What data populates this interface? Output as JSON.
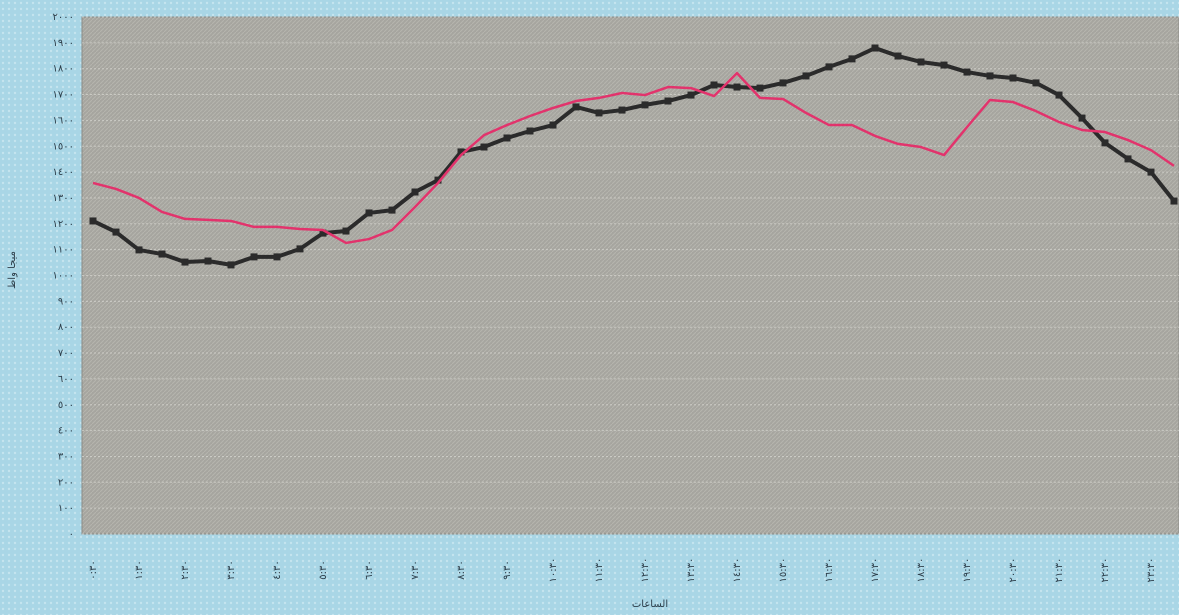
{
  "chart_data": {
    "type": "line",
    "y_label": "ميجا واط",
    "x_label": "الساعات",
    "categories": [
      "٠:٣٠",
      null,
      "١:٣٠",
      null,
      "٢:٣٠",
      null,
      "٣:٣٠",
      null,
      "٤:٣٠",
      null,
      "٥:٣٠",
      null,
      "٦:٣٠",
      null,
      "٧:٣٠",
      null,
      "٨:٣٠",
      null,
      "٩:٣٠",
      null,
      "١٠:٣٠",
      null,
      "١١:٣٠",
      null,
      "١٢:٣٠",
      null,
      "١٣:٣٠",
      null,
      "١٤:٣٠",
      null,
      "١٥:٣٠",
      null,
      "١٦:٣٠",
      null,
      "١٧:٣٠",
      null,
      "١٨:٣٠",
      null,
      "١٩:٣٠",
      null,
      "٢٠:٣٠",
      null,
      "٢١:٣٠",
      null,
      "٢٢:٣٠",
      null,
      "٢٣:٣٠",
      null
    ],
    "series": [
      {
        "color": "#2b2b2b",
        "markers": true,
        "values": [
          1211,
          1168,
          1099,
          1083,
          1052,
          1056,
          1041,
          1072,
          1072,
          1103,
          1164,
          1172,
          1242,
          1253,
          1323,
          1369,
          1478,
          1497,
          1532,
          1559,
          1582,
          1652,
          1629,
          1640,
          1660,
          1675,
          1698,
          1737,
          1729,
          1725,
          1745,
          1772,
          1807,
          1838,
          1880,
          1849,
          1826,
          1814,
          1787,
          1772,
          1764,
          1745,
          1698,
          1609,
          1513,
          1451,
          1400,
          1288
        ]
      },
      {
        "color": "#e2336c",
        "markers": false,
        "values": [
          1358,
          1335,
          1300,
          1246,
          1219,
          1215,
          1211,
          1188,
          1188,
          1180,
          1176,
          1126,
          1141,
          1176,
          1265,
          1358,
          1466,
          1543,
          1582,
          1617,
          1648,
          1675,
          1687,
          1706,
          1698,
          1729,
          1725,
          1694,
          1783,
          1687,
          1683,
          1629,
          1582,
          1582,
          1540,
          1509,
          1497,
          1466,
          1574,
          1679,
          1671,
          1636,
          1594,
          1563,
          1555,
          1524,
          1485,
          1424
        ]
      }
    ],
    "ylim": [
      0,
      2000
    ],
    "yticks": [
      {
        "value": 0,
        "label": "٠"
      },
      {
        "value": 100,
        "label": "١٠٠"
      },
      {
        "value": 200,
        "label": "٢٠٠"
      },
      {
        "value": 300,
        "label": "٣٠٠"
      },
      {
        "value": 400,
        "label": "٤٠٠"
      },
      {
        "value": 500,
        "label": "٥٠٠"
      },
      {
        "value": 600,
        "label": "٦٠٠"
      },
      {
        "value": 700,
        "label": "٧٠٠"
      },
      {
        "value": 800,
        "label": "٨٠٠"
      },
      {
        "value": 900,
        "label": "٩٠٠"
      },
      {
        "value": 1000,
        "label": "١٠٠٠"
      },
      {
        "value": 1100,
        "label": "١١٠٠"
      },
      {
        "value": 1200,
        "label": "١٢٠٠"
      },
      {
        "value": 1300,
        "label": "١٣٠٠"
      },
      {
        "value": 1400,
        "label": "١٤٠٠"
      },
      {
        "value": 1500,
        "label": "١٥٠٠"
      },
      {
        "value": 1600,
        "label": "١٦٠٠"
      },
      {
        "value": 1700,
        "label": "١٧٠٠"
      },
      {
        "value": 1800,
        "label": "١٨٠٠"
      },
      {
        "value": 1900,
        "label": "١٩٠٠"
      },
      {
        "value": 2000,
        "label": "٢٠٠٠"
      }
    ],
    "grid": true
  }
}
